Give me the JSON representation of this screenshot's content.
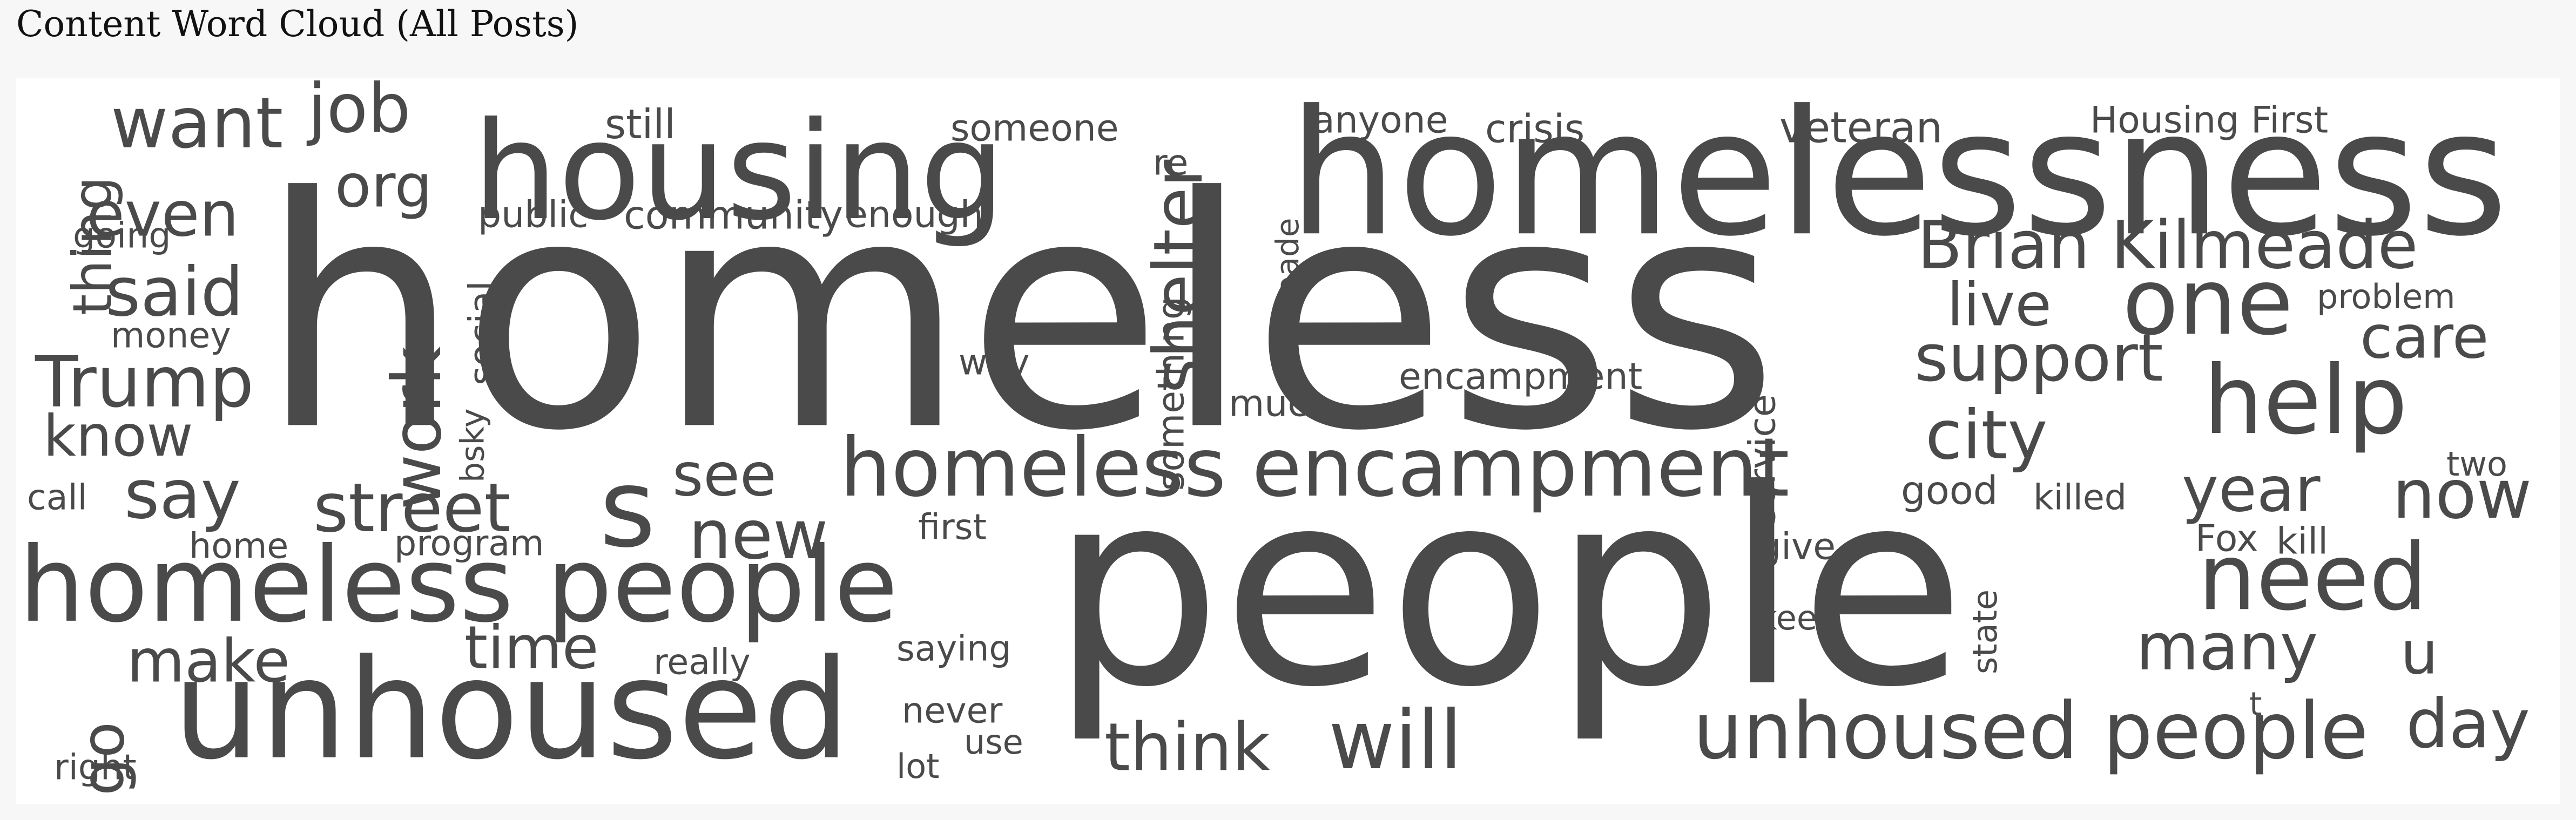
{
  "page": {
    "title": "Content Word Cloud (All Posts)"
  },
  "chart_data": {
    "type": "wordcloud",
    "title": "Content Word Cloud (All Posts)",
    "word_color": "#4a4a4a",
    "background_color": "#ffffff",
    "words": [
      {
        "text": "homeless",
        "weight": 100,
        "orientation": "horizontal"
      },
      {
        "text": "people",
        "weight": 93,
        "orientation": "horizontal"
      },
      {
        "text": "homelessness",
        "weight": 62,
        "orientation": "horizontal"
      },
      {
        "text": "housing",
        "weight": 52,
        "orientation": "horizontal"
      },
      {
        "text": "unhoused",
        "weight": 50,
        "orientation": "horizontal"
      },
      {
        "text": "homeless people",
        "weight": 40,
        "orientation": "horizontal"
      },
      {
        "text": "s",
        "weight": 38,
        "orientation": "horizontal"
      },
      {
        "text": "homeless encampment",
        "weight": 30,
        "orientation": "horizontal"
      },
      {
        "text": "unhoused people",
        "weight": 30,
        "orientation": "horizontal"
      },
      {
        "text": "will",
        "weight": 29,
        "orientation": "horizontal"
      },
      {
        "text": "need",
        "weight": 28,
        "orientation": "horizontal"
      },
      {
        "text": "help",
        "weight": 28,
        "orientation": "horizontal"
      },
      {
        "text": "one",
        "weight": 27,
        "orientation": "horizontal"
      },
      {
        "text": "want",
        "weight": 25,
        "orientation": "horizontal"
      },
      {
        "text": "shelter",
        "weight": 25,
        "orientation": "vertical"
      },
      {
        "text": "work",
        "weight": 24,
        "orientation": "vertical"
      },
      {
        "text": "street",
        "weight": 22,
        "orientation": "horizontal"
      },
      {
        "text": "new",
        "weight": 22,
        "orientation": "horizontal"
      },
      {
        "text": "Trump",
        "weight": 22,
        "orientation": "horizontal"
      },
      {
        "text": "Brian Kilmeade",
        "weight": 22,
        "orientation": "horizontal"
      },
      {
        "text": "job",
        "weight": 22,
        "orientation": "horizontal"
      },
      {
        "text": "city",
        "weight": 21,
        "orientation": "horizontal"
      },
      {
        "text": "think",
        "weight": 21,
        "orientation": "horizontal"
      },
      {
        "text": "day",
        "weight": 21,
        "orientation": "horizontal"
      },
      {
        "text": "now",
        "weight": 21,
        "orientation": "horizontal"
      },
      {
        "text": "said",
        "weight": 20,
        "orientation": "horizontal"
      },
      {
        "text": "say",
        "weight": 20,
        "orientation": "horizontal"
      },
      {
        "text": "many",
        "weight": 20,
        "orientation": "horizontal"
      },
      {
        "text": "support",
        "weight": 20,
        "orientation": "horizontal"
      },
      {
        "text": "time",
        "weight": 19,
        "orientation": "horizontal"
      },
      {
        "text": "make",
        "weight": 19,
        "orientation": "horizontal"
      },
      {
        "text": "even",
        "weight": 19,
        "orientation": "horizontal"
      },
      {
        "text": "see",
        "weight": 19,
        "orientation": "horizontal"
      },
      {
        "text": "year",
        "weight": 19,
        "orientation": "horizontal"
      },
      {
        "text": "care",
        "weight": 18,
        "orientation": "horizontal"
      },
      {
        "text": "live",
        "weight": 18,
        "orientation": "horizontal"
      },
      {
        "text": "org",
        "weight": 18,
        "orientation": "horizontal"
      },
      {
        "text": "know",
        "weight": 18,
        "orientation": "horizontal"
      },
      {
        "text": "go",
        "weight": 18,
        "orientation": "vertical"
      },
      {
        "text": "thing",
        "weight": 17,
        "orientation": "vertical"
      },
      {
        "text": "u",
        "weight": 17,
        "orientation": "horizontal"
      },
      {
        "text": "service",
        "weight": 13,
        "orientation": "vertical"
      },
      {
        "text": "social",
        "weight": 13,
        "orientation": "vertical"
      },
      {
        "text": "community",
        "weight": 12,
        "orientation": "horizontal"
      },
      {
        "text": "veteran",
        "weight": 12,
        "orientation": "horizontal"
      },
      {
        "text": "something",
        "weight": 12,
        "orientation": "vertical"
      },
      {
        "text": "encampment",
        "weight": 12,
        "orientation": "horizontal"
      },
      {
        "text": "still",
        "weight": 12,
        "orientation": "horizontal"
      },
      {
        "text": "way",
        "weight": 12,
        "orientation": "horizontal"
      },
      {
        "text": "much",
        "weight": 12,
        "orientation": "horizontal"
      },
      {
        "text": "good",
        "weight": 12,
        "orientation": "horizontal"
      },
      {
        "text": "crisis",
        "weight": 11,
        "orientation": "horizontal"
      },
      {
        "text": "anyone",
        "weight": 11,
        "orientation": "horizontal"
      },
      {
        "text": "someone",
        "weight": 11,
        "orientation": "horizontal"
      },
      {
        "text": "Housing First",
        "weight": 11,
        "orientation": "horizontal"
      },
      {
        "text": "public",
        "weight": 11,
        "orientation": "horizontal"
      },
      {
        "text": "enough",
        "weight": 11,
        "orientation": "horizontal"
      },
      {
        "text": "Kilmeade",
        "weight": 11,
        "orientation": "vertical"
      },
      {
        "text": "re",
        "weight": 11,
        "orientation": "horizontal"
      },
      {
        "text": "going",
        "weight": 11,
        "orientation": "horizontal"
      },
      {
        "text": "money",
        "weight": 11,
        "orientation": "horizontal"
      },
      {
        "text": "bsky",
        "weight": 11,
        "orientation": "vertical"
      },
      {
        "text": "killed",
        "weight": 11,
        "orientation": "horizontal"
      },
      {
        "text": "problem",
        "weight": 11,
        "orientation": "horizontal"
      },
      {
        "text": "call",
        "weight": 11,
        "orientation": "horizontal"
      },
      {
        "text": "home",
        "weight": 11,
        "orientation": "horizontal"
      },
      {
        "text": "program",
        "weight": 11,
        "orientation": "horizontal"
      },
      {
        "text": "first",
        "weight": 11,
        "orientation": "horizontal"
      },
      {
        "text": "give",
        "weight": 11,
        "orientation": "horizontal"
      },
      {
        "text": "Fox",
        "weight": 11,
        "orientation": "horizontal"
      },
      {
        "text": "kill",
        "weight": 11,
        "orientation": "horizontal"
      },
      {
        "text": "two",
        "weight": 11,
        "orientation": "horizontal"
      },
      {
        "text": "keep",
        "weight": 11,
        "orientation": "horizontal"
      },
      {
        "text": "state",
        "weight": 11,
        "orientation": "vertical"
      },
      {
        "text": "really",
        "weight": 11,
        "orientation": "horizontal"
      },
      {
        "text": "saying",
        "weight": 11,
        "orientation": "horizontal"
      },
      {
        "text": "never",
        "weight": 11,
        "orientation": "horizontal"
      },
      {
        "text": "use",
        "weight": 11,
        "orientation": "horizontal"
      },
      {
        "text": "lot",
        "weight": 11,
        "orientation": "horizontal"
      },
      {
        "text": "right",
        "weight": 11,
        "orientation": "horizontal"
      },
      {
        "text": "t",
        "weight": 10,
        "orientation": "horizontal"
      }
    ]
  }
}
